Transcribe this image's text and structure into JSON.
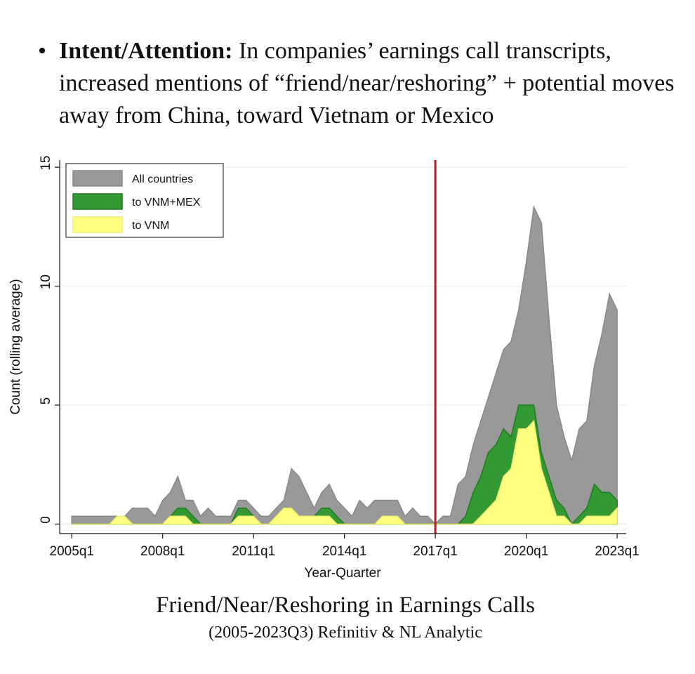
{
  "header": {
    "label": "Intent/Attention:",
    "text": "In companies’ earnings call transcripts, increased mentions of  “friend/near/reshoring” + potential moves away from China, toward Vietnam or Mexico"
  },
  "chart_data": {
    "type": "area",
    "title": "Friend/Near/Reshoring in Earnings Calls",
    "subtitle": "(2005-2023Q3) Refinitiv & NL Analytic",
    "x_label": "Year-Quarter",
    "y_label": "Count (rolling average)",
    "xlim": [
      2004.6,
      2023.3
    ],
    "ylim": [
      -0.4,
      15.3
    ],
    "xticks": [
      {
        "value": 2005,
        "label": "2005q1"
      },
      {
        "value": 2008,
        "label": "2008q1"
      },
      {
        "value": 2011,
        "label": "2011q1"
      },
      {
        "value": 2014,
        "label": "2014q1"
      },
      {
        "value": 2017,
        "label": "2017q1"
      },
      {
        "value": 2020,
        "label": "2020q1"
      },
      {
        "value": 2023,
        "label": "2023q1"
      }
    ],
    "yticks": [
      0,
      5,
      10,
      15
    ],
    "grid": true,
    "legend": "top-left",
    "vline_x": 2017,
    "vline_color": "#c0171b",
    "x": [
      2005,
      2005.25,
      2005.5,
      2005.75,
      2006,
      2006.25,
      2006.5,
      2006.75,
      2007,
      2007.25,
      2007.5,
      2007.75,
      2008,
      2008.25,
      2008.5,
      2008.75,
      2009,
      2009.25,
      2009.5,
      2009.75,
      2010,
      2010.25,
      2010.5,
      2010.75,
      2011,
      2011.25,
      2011.5,
      2011.75,
      2012,
      2012.25,
      2012.5,
      2012.75,
      2013,
      2013.25,
      2013.5,
      2013.75,
      2014,
      2014.25,
      2014.5,
      2014.75,
      2015,
      2015.25,
      2015.5,
      2015.75,
      2016,
      2016.25,
      2016.5,
      2016.75,
      2017,
      2017.25,
      2017.5,
      2017.75,
      2018,
      2018.25,
      2018.5,
      2018.75,
      2019,
      2019.25,
      2019.5,
      2019.75,
      2020,
      2020.25,
      2020.5,
      2020.75,
      2021,
      2021.25,
      2021.5,
      2021.75,
      2022,
      2022.25,
      2022.5,
      2022.75,
      2023
    ],
    "series": [
      {
        "name": "All countries",
        "color": "#999999",
        "stroke": "#888888",
        "values": [
          0.33,
          0.33,
          0.33,
          0.33,
          0.33,
          0.33,
          0.33,
          0.33,
          0.67,
          0.67,
          0.67,
          0.33,
          1,
          1.33,
          2,
          1,
          1,
          0.33,
          0.67,
          0.33,
          0.33,
          0.33,
          1,
          1,
          0.67,
          0.33,
          0.33,
          0.67,
          1,
          2.33,
          2,
          1.33,
          0.67,
          1.33,
          1.67,
          1,
          0.67,
          0.33,
          1,
          0.67,
          1,
          1,
          1,
          1,
          0.33,
          0.67,
          0.33,
          0.33,
          0,
          0.33,
          0.33,
          1.67,
          2,
          3.33,
          4.33,
          5.33,
          6.33,
          7.33,
          7.67,
          9,
          11,
          13.33,
          12.67,
          8.67,
          5,
          3.67,
          2.67,
          4,
          4.33,
          6.67,
          8,
          9.67,
          9
        ]
      },
      {
        "name": "to VNM+MEX",
        "color": "#339933",
        "stroke": "#1f7a1f",
        "values": [
          0,
          0,
          0,
          0,
          0,
          0,
          0.33,
          0.33,
          0,
          0,
          0,
          0,
          0,
          0.33,
          0.67,
          0.67,
          0.33,
          0,
          0,
          0,
          0,
          0,
          0.67,
          0.67,
          0.33,
          0,
          0,
          0.33,
          0.67,
          0.67,
          0.33,
          0.33,
          0.33,
          0.67,
          0.67,
          0.33,
          0,
          0,
          0,
          0,
          0,
          0.33,
          0.33,
          0.33,
          0,
          0,
          0,
          0,
          0,
          0,
          0,
          0,
          0.33,
          1.33,
          2,
          3,
          3.33,
          4,
          3.67,
          5,
          5,
          5,
          3,
          2,
          1,
          0.67,
          0,
          0.33,
          0.67,
          1.67,
          1.33,
          1.33,
          1
        ]
      },
      {
        "name": "to VNM",
        "color": "#ffff80",
        "stroke": "#eeee70",
        "values": [
          0,
          0,
          0,
          0,
          0,
          0,
          0.33,
          0.33,
          0,
          0,
          0,
          0,
          0,
          0.33,
          0.33,
          0.33,
          0,
          0,
          0,
          0,
          0,
          0,
          0.33,
          0.33,
          0.33,
          0,
          0,
          0.33,
          0.67,
          0.67,
          0.33,
          0.33,
          0.33,
          0.33,
          0.33,
          0,
          0,
          0,
          0,
          0,
          0,
          0.33,
          0.33,
          0.33,
          0,
          0,
          0,
          0,
          0,
          0,
          0,
          0,
          0,
          0,
          0.33,
          0.67,
          1,
          2,
          2.33,
          4,
          4,
          4.33,
          2.33,
          1.33,
          0.33,
          0.33,
          0,
          0,
          0.33,
          0.33,
          0.33,
          0.33,
          0.67
        ]
      }
    ]
  }
}
